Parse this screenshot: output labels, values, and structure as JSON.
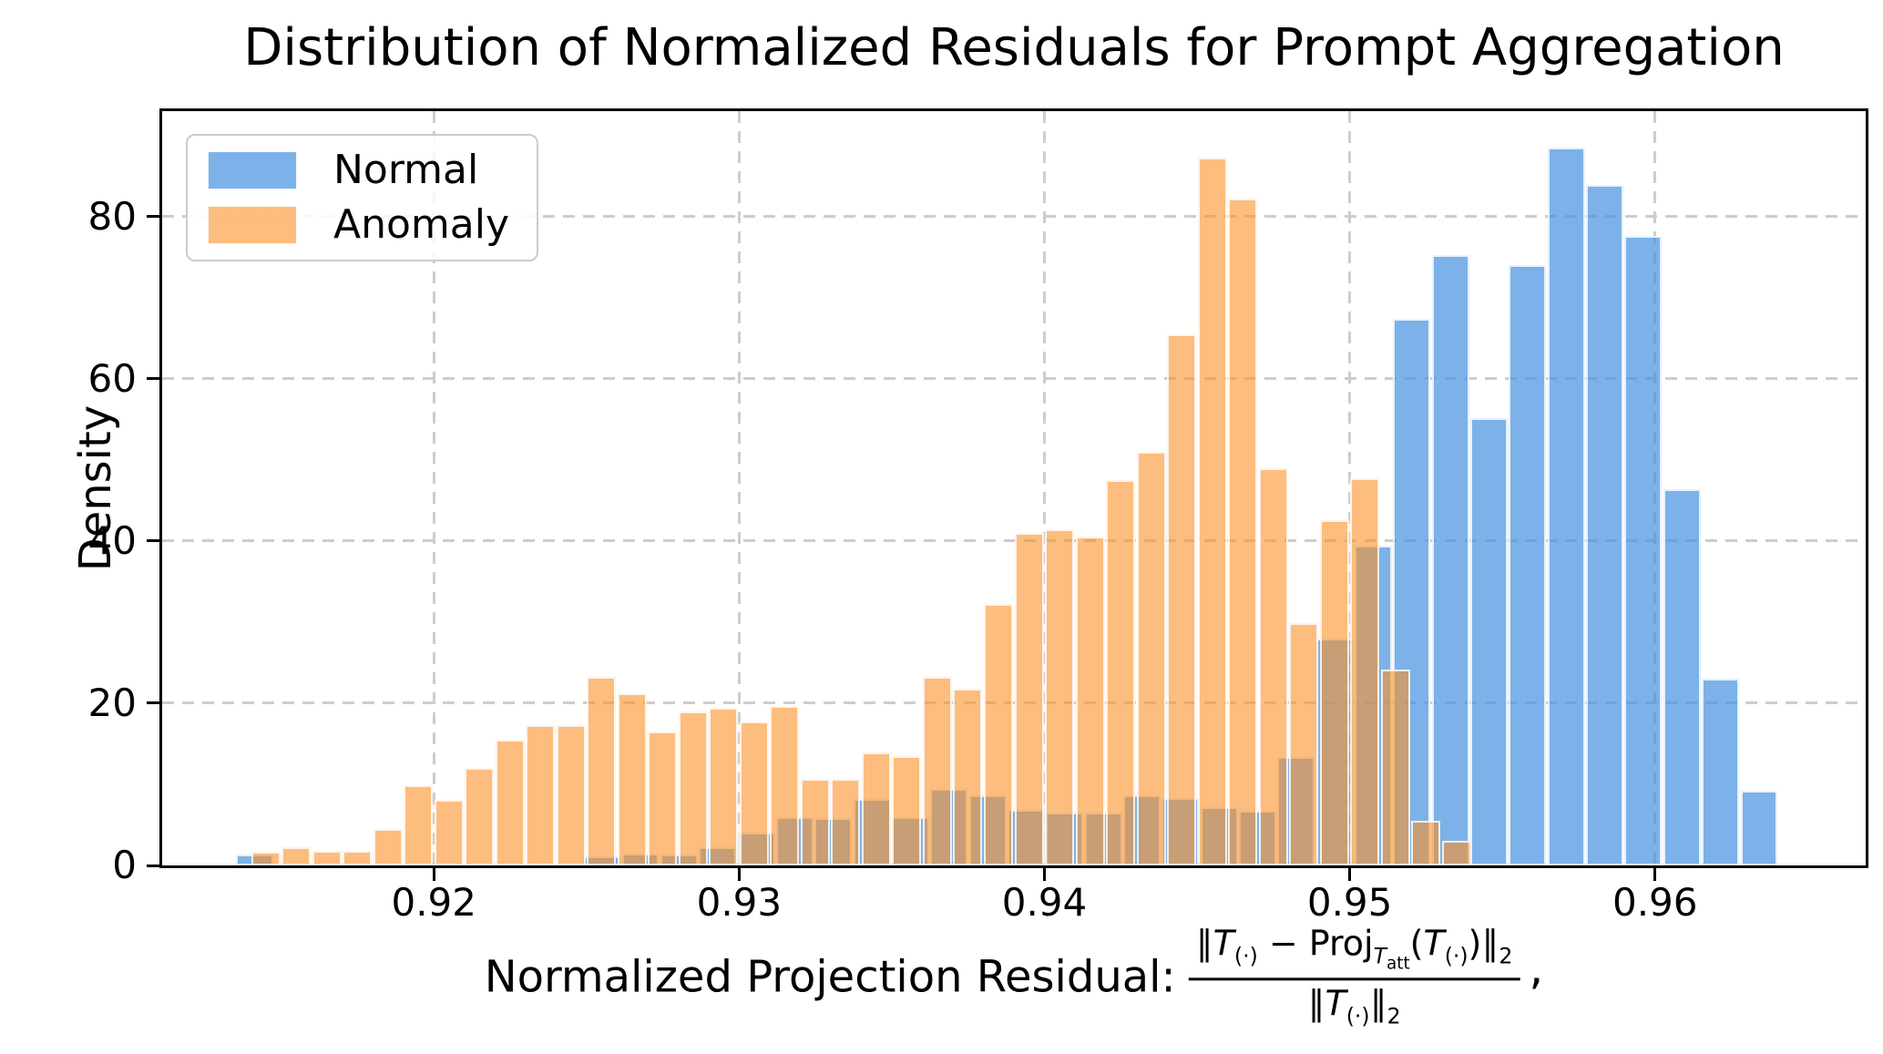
{
  "figure": {
    "title": "Distribution of Normalized Residuals for Prompt Aggregation",
    "background": "#ffffff"
  },
  "axes": {
    "ylabel": "Density",
    "xlabel_prefix": "Normalized Projection Residual:",
    "x_ticks": [
      {
        "v": 0.92,
        "label": "0.92"
      },
      {
        "v": 0.93,
        "label": "0.93"
      },
      {
        "v": 0.94,
        "label": "0.94"
      },
      {
        "v": 0.95,
        "label": "0.95"
      },
      {
        "v": 0.96,
        "label": "0.96"
      }
    ],
    "y_ticks": [
      {
        "v": 0,
        "label": "0"
      },
      {
        "v": 20,
        "label": "20"
      },
      {
        "v": 40,
        "label": "40"
      },
      {
        "v": 60,
        "label": "60"
      },
      {
        "v": 80,
        "label": "80"
      }
    ]
  },
  "formula": {
    "norm": "∥",
    "T": "T",
    "sub_idx": "(·)",
    "minus": " − ",
    "proj": "Proj",
    "att": "att",
    "lparen": "(",
    "rparen": ")",
    "sub2": "2",
    "trailing_mark": ","
  },
  "legend": {
    "items": [
      {
        "label": "Normal",
        "color": "rgba(69,146,224,0.7)"
      },
      {
        "label": "Anomaly",
        "color": "rgba(250,145,40,0.6)"
      }
    ]
  },
  "chart_data": {
    "type": "histogram",
    "title": "Distribution of Normalized Residuals for Prompt Aggregation",
    "xlabel": "Normalized Projection Residual: ||T(.) - Proj_{T_att}(T(.))||_2 / ||T(.)||_2 ,",
    "ylabel": "Density",
    "xlim": [
      0.9111,
      0.9669
    ],
    "ylim": [
      0,
      93
    ],
    "grid": true,
    "legend_position": "upper left",
    "series": [
      {
        "name": "Normal",
        "color_fill": "rgba(69,146,224,0.7)",
        "bin_start": 0.91351,
        "bin_width": 0.0012634,
        "densities": [
          1.4,
          0,
          0,
          0,
          0,
          0,
          0,
          0,
          0,
          1.1,
          1.5,
          1.4,
          2.2,
          4.0,
          6.0,
          5.8,
          8.2,
          6.0,
          9.4,
          8.6,
          6.9,
          6.5,
          6.5,
          8.7,
          8.3,
          7.2,
          6.7,
          13.4,
          28.0,
          39.4,
          67.4,
          75.3,
          55.2,
          74.0,
          88.5,
          83.9,
          77.6,
          46.4,
          23.0,
          9.2
        ]
      },
      {
        "name": "Anomaly",
        "color_fill": "rgba(250,145,40,0.6)",
        "bin_start": 0.914,
        "bin_width": 0.001,
        "densities": [
          1.7,
          2.3,
          1.8,
          1.8,
          4.5,
          9.9,
          8.1,
          12.0,
          15.5,
          17.3,
          17.3,
          23.2,
          21.2,
          16.5,
          19.0,
          19.4,
          17.8,
          19.6,
          10.7,
          10.7,
          13.9,
          13.5,
          23.3,
          21.8,
          32.2,
          41.0,
          41.5,
          40.5,
          47.5,
          51.0,
          65.5,
          87.3,
          82.2,
          49.0,
          29.9,
          42.6,
          47.7,
          24.2,
          5.5,
          3.0
        ]
      }
    ]
  }
}
